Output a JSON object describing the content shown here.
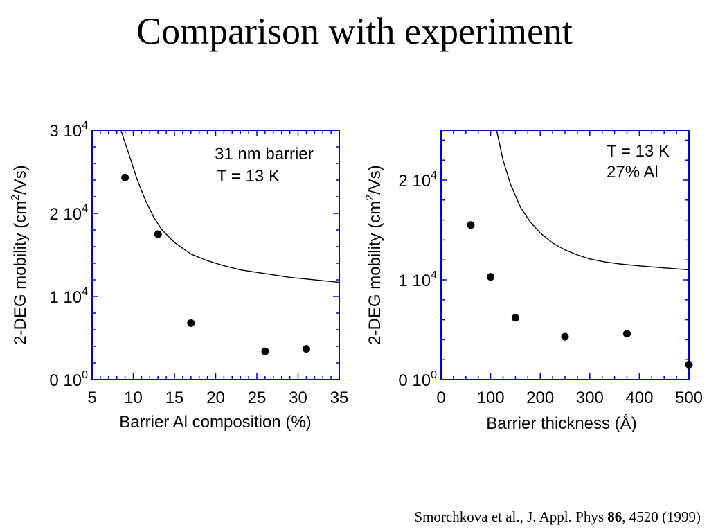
{
  "slide": {
    "title": "Comparison with experiment",
    "citation": {
      "authors": "Smorchkova et al., J. Appl. Phys ",
      "volume": "86",
      "rest": ", 4520 (1999)"
    }
  },
  "colors": {
    "frame": "#0000cc",
    "ink": "#000000"
  },
  "chart_data": [
    {
      "type": "scatter",
      "xlabel": "Barrier Al composition (%)",
      "ylabel_parts": [
        "2-DEG mobility (cm",
        "2",
        "/Vs)"
      ],
      "xlim": [
        5,
        35
      ],
      "ylim": [
        0,
        30000
      ],
      "x_ticks": [
        5,
        10,
        15,
        20,
        25,
        30,
        35
      ],
      "y_ticks": [
        {
          "value": 0,
          "mantissa": "0 10",
          "exp": "0"
        },
        {
          "value": 10000,
          "mantissa": "1 10",
          "exp": "4"
        },
        {
          "value": 20000,
          "mantissa": "2 10",
          "exp": "4"
        },
        {
          "value": 30000,
          "mantissa": "3 10",
          "exp": "4"
        }
      ],
      "annotations": [
        "31 nm barrier",
        "T = 13 K"
      ],
      "points": [
        {
          "x": 9,
          "y": 24300
        },
        {
          "x": 13,
          "y": 17500
        },
        {
          "x": 17,
          "y": 6800
        },
        {
          "x": 26,
          "y": 3400
        },
        {
          "x": 31,
          "y": 3700
        }
      ],
      "curve": {
        "x": [
          8.5,
          9.5,
          10.5,
          11.5,
          12.5,
          13.5,
          15,
          17,
          19,
          21,
          23,
          25,
          27,
          29,
          31,
          33,
          35
        ],
        "y": [
          30000,
          27000,
          24000,
          21500,
          19500,
          18000,
          16500,
          15100,
          14300,
          13700,
          13200,
          12900,
          12600,
          12300,
          12100,
          11900,
          11700
        ]
      }
    },
    {
      "type": "scatter",
      "xlabel": "Barrier thickness (Ǻ)",
      "ylabel_parts": [
        "2-DEG mobility (cm",
        "2",
        "/Vs)"
      ],
      "xlim": [
        0,
        500
      ],
      "ylim": [
        0,
        25000
      ],
      "x_ticks": [
        0,
        100,
        200,
        300,
        400,
        500
      ],
      "y_ticks": [
        {
          "value": 0,
          "mantissa": "0 10",
          "exp": "0"
        },
        {
          "value": 10000,
          "mantissa": "1 10",
          "exp": "4"
        },
        {
          "value": 20000,
          "mantissa": "2 10",
          "exp": "4"
        }
      ],
      "annotations": [
        "T = 13 K",
        "27% Al"
      ],
      "points": [
        {
          "x": 60,
          "y": 15500
        },
        {
          "x": 100,
          "y": 10300
        },
        {
          "x": 150,
          "y": 6200
        },
        {
          "x": 250,
          "y": 4300
        },
        {
          "x": 375,
          "y": 4600
        },
        {
          "x": 500,
          "y": 1500
        }
      ],
      "curve": {
        "x": [
          112,
          125,
          140,
          160,
          180,
          200,
          225,
          250,
          275,
          300,
          330,
          360,
          400,
          450,
          500
        ],
        "y": [
          25000,
          22000,
          19600,
          17300,
          15800,
          14700,
          13700,
          13000,
          12500,
          12100,
          11800,
          11600,
          11400,
          11200,
          11000
        ]
      }
    }
  ]
}
